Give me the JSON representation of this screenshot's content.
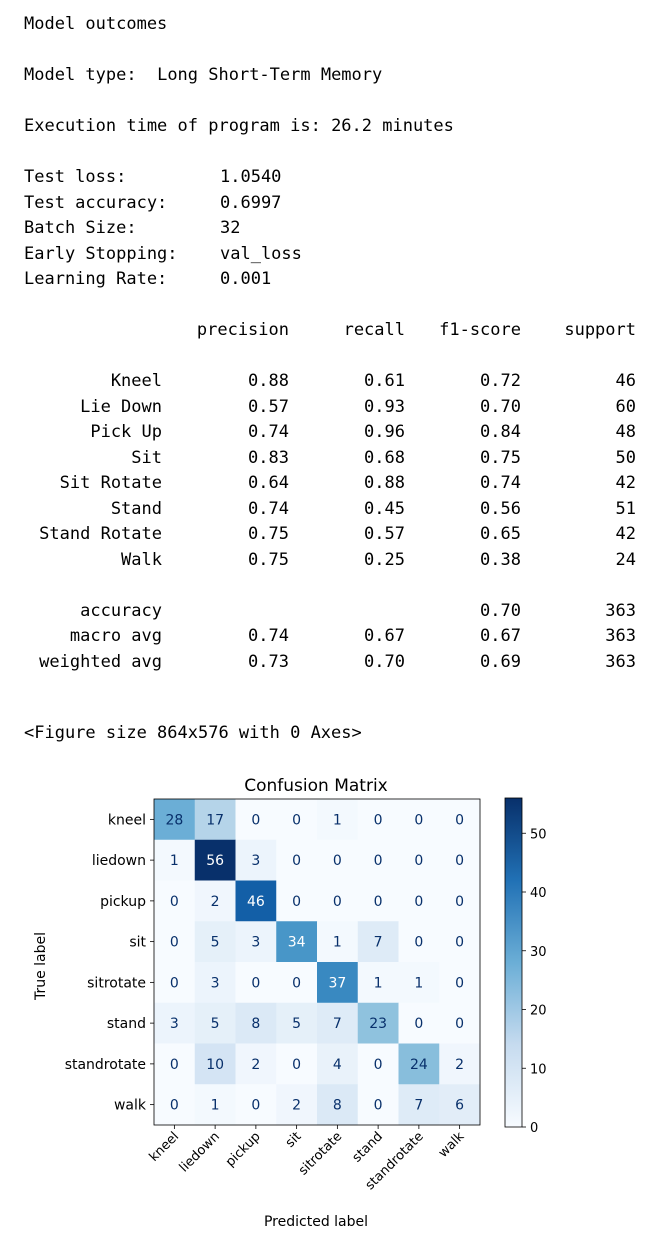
{
  "outcomes": {
    "heading": "Model outcomes",
    "model_type_label": "Model type:",
    "model_type_value": "Long Short-Term Memory",
    "exec_label": "Execution time of program is:",
    "exec_value": "26.2 minutes",
    "metrics": [
      {
        "label": "Test loss:",
        "value": "1.0540"
      },
      {
        "label": "Test accuracy:",
        "value": "0.6997"
      },
      {
        "label": "Batch Size:",
        "value": "32"
      },
      {
        "label": "Early Stopping:",
        "value": "val_loss"
      },
      {
        "label": "Learning Rate:",
        "value": "0.001"
      }
    ]
  },
  "report": {
    "headers": [
      "precision",
      "recall",
      "f1-score",
      "support"
    ],
    "rows": [
      {
        "label": "Kneel",
        "cells": [
          "0.88",
          "0.61",
          "0.72",
          "46"
        ]
      },
      {
        "label": "Lie Down",
        "cells": [
          "0.57",
          "0.93",
          "0.70",
          "60"
        ]
      },
      {
        "label": "Pick Up",
        "cells": [
          "0.74",
          "0.96",
          "0.84",
          "48"
        ]
      },
      {
        "label": "Sit",
        "cells": [
          "0.83",
          "0.68",
          "0.75",
          "50"
        ]
      },
      {
        "label": "Sit Rotate",
        "cells": [
          "0.64",
          "0.88",
          "0.74",
          "42"
        ]
      },
      {
        "label": "Stand",
        "cells": [
          "0.74",
          "0.45",
          "0.56",
          "51"
        ]
      },
      {
        "label": "Stand Rotate",
        "cells": [
          "0.75",
          "0.57",
          "0.65",
          "42"
        ]
      },
      {
        "label": "Walk",
        "cells": [
          "0.75",
          "0.25",
          "0.38",
          "24"
        ]
      }
    ],
    "summary": [
      {
        "label": "accuracy",
        "cells": [
          "",
          "",
          "0.70",
          "363"
        ]
      },
      {
        "label": "macro avg",
        "cells": [
          "0.74",
          "0.67",
          "0.67",
          "363"
        ]
      },
      {
        "label": "weighted avg",
        "cells": [
          "0.73",
          "0.70",
          "0.69",
          "363"
        ]
      }
    ]
  },
  "figure_note": "<Figure size 864x576 with 0 Axes>",
  "colors": {
    "low": "#f7fbff",
    "high": "#08306b"
  },
  "chart_data": {
    "type": "heatmap",
    "title": "Confusion Matrix",
    "xlabel": "Predicted label",
    "ylabel": "True label",
    "x_categories": [
      "kneel",
      "liedown",
      "pickup",
      "sit",
      "sitrotate",
      "stand",
      "standrotate",
      "walk"
    ],
    "y_categories": [
      "kneel",
      "liedown",
      "pickup",
      "sit",
      "sitrotate",
      "stand",
      "standrotate",
      "walk"
    ],
    "values": [
      [
        28,
        17,
        0,
        0,
        1,
        0,
        0,
        0
      ],
      [
        1,
        56,
        3,
        0,
        0,
        0,
        0,
        0
      ],
      [
        0,
        2,
        46,
        0,
        0,
        0,
        0,
        0
      ],
      [
        0,
        5,
        3,
        34,
        1,
        7,
        0,
        0
      ],
      [
        0,
        3,
        0,
        0,
        37,
        1,
        1,
        0
      ],
      [
        3,
        5,
        8,
        5,
        7,
        23,
        0,
        0
      ],
      [
        0,
        10,
        2,
        0,
        4,
        0,
        24,
        2
      ],
      [
        0,
        1,
        0,
        2,
        8,
        0,
        7,
        6
      ]
    ],
    "colorbar": {
      "min": 0,
      "max": 56,
      "ticks": [
        0,
        10,
        20,
        30,
        40,
        50
      ]
    }
  }
}
